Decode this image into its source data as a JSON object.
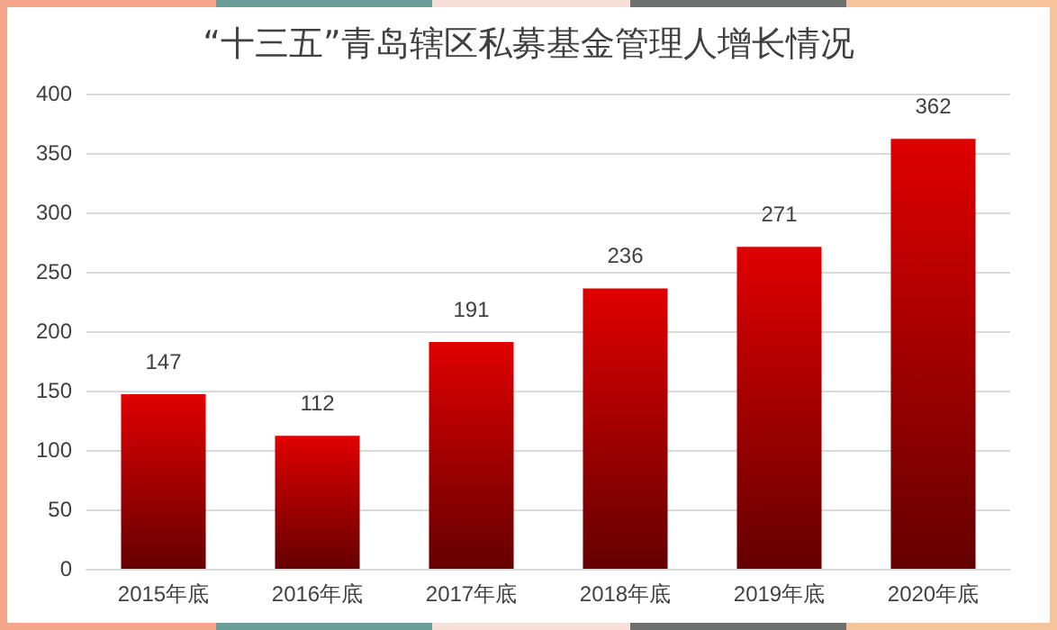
{
  "chart_data": {
    "type": "bar",
    "title": "“十三五”青岛辖区私募基金管理人增长情况",
    "categories": [
      "2015年底",
      "2016年底",
      "2017年底",
      "2018年底",
      "2019年底",
      "2020年底"
    ],
    "values": [
      147,
      112,
      191,
      236,
      271,
      362
    ],
    "color": "#e00000",
    "ylim": [
      0,
      400
    ],
    "yticks": [
      0,
      50,
      100,
      150,
      200,
      250,
      300,
      350,
      400
    ],
    "grid": "y",
    "data_labels": true
  }
}
